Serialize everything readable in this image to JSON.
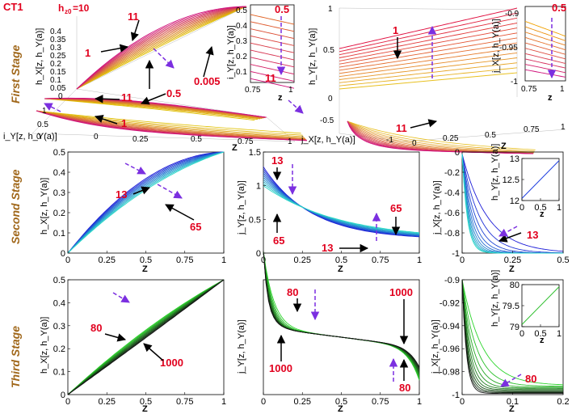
{
  "figure_label": "CT1",
  "hz0_label": "h",
  "hz0_sub": "z0",
  "hz0_value": "=10",
  "stages": [
    "First Stage",
    "Second Stage",
    "Third Stage"
  ],
  "colors": {
    "stage_label": "#a0671a",
    "red_label": "#e1001e",
    "arrow": "#7b2fe0"
  },
  "chart_data": [
    {
      "id": "first-left-3d",
      "type": "line",
      "title": "",
      "xlabel": "i_Y[z, h_Y(a)]",
      "ylabel": "h_X[z, h_Y(a)]",
      "zlabel": "z",
      "ztick_labels": [
        "0.4",
        "0.35",
        "0.3",
        "0.25",
        "0.2",
        "0.15",
        "0.1",
        "0.05",
        "0"
      ],
      "xtick_labels": [
        "0",
        "0.25",
        "0.5",
        "0.75",
        "1"
      ],
      "iy_tick_labels": [
        "1",
        "0.5",
        "0"
      ],
      "axis_letter": "Z",
      "labels": [
        "11",
        "1",
        "11",
        "0.5",
        "0.005",
        "1"
      ],
      "series_param_range": [
        0.005,
        11
      ],
      "inset": {
        "ylabel": "i_Y[z, h_Y(a)]",
        "ytick_labels": [
          "0.5",
          "0.4",
          "0.3",
          "0.2",
          "0.1"
        ],
        "xtick_labels": [
          "0.75",
          "1"
        ],
        "xlabel": "z",
        "labels": [
          "0.5",
          "11"
        ]
      }
    },
    {
      "id": "first-right-3d",
      "type": "line",
      "xlabel": "j_X[z, h_Y(a)]",
      "ylabel": "h_Y[z, h_Y(a)]",
      "zlabel": "z",
      "ztick_labels": [
        "1",
        "0.5",
        "0"
      ],
      "jx_tick_labels": [
        "-0.5",
        "-1"
      ],
      "xtick_labels": [
        "0",
        "0.25",
        "0.5",
        "0.75",
        "1"
      ],
      "axis_letter": "Z",
      "labels": [
        "1",
        "11"
      ],
      "inset": {
        "ylabel": "j_X[z, h_Y(a)]",
        "ytick_labels": [
          "-0.9",
          "-0.95",
          "-1"
        ],
        "xtick_labels": [
          "0.75",
          "1"
        ],
        "xlabel": "z",
        "labels": [
          "0.5"
        ]
      }
    },
    {
      "id": "second-hx",
      "type": "line",
      "xlabel": "Z",
      "ylabel": "h_X[z, h_Y(a)]",
      "xlim": [
        0,
        1
      ],
      "ylim": [
        0,
        0.5
      ],
      "xtick_labels": [
        "0",
        "0.25",
        "0.5",
        "0.75",
        "1"
      ],
      "ytick_labels": [
        "0",
        "0.1",
        "0.2",
        "0.3",
        "0.4",
        "0.5"
      ],
      "param_range": [
        13,
        65
      ],
      "labels": [
        "13",
        "65"
      ],
      "colormap": "blue-to-cyan",
      "model": "h_X(z)=0.5 z (1+a(1-z))",
      "a_range": [
        0.95,
        0.5
      ]
    },
    {
      "id": "second-jy",
      "type": "line",
      "xlabel": "Z",
      "ylabel": "j_Y[z, h_Y(a)]",
      "xlim": [
        0,
        1
      ],
      "ylim": [
        0,
        1.5
      ],
      "xtick_labels": [
        "0",
        "0.25",
        "0.5",
        "0.75",
        "1"
      ],
      "ytick_labels": [
        "0",
        "0.5",
        "1",
        "1.5"
      ],
      "param_range": [
        13,
        65
      ],
      "labels": [
        "13",
        "65",
        "65",
        "13"
      ],
      "colormap": "blue-to-cyan",
      "start_values": [
        1.28,
        1.0
      ],
      "end_value": 0.2
    },
    {
      "id": "second-jx",
      "type": "line",
      "xlabel": "Z",
      "ylabel": "j_X[z, h_Y(a)]",
      "xlim": [
        0,
        0.5
      ],
      "ylim": [
        -1,
        0
      ],
      "xtick_labels": [
        "0",
        "0.25",
        "0.5"
      ],
      "ytick_labels": [
        "-1",
        "-0.8",
        "-0.6",
        "-0.4",
        "-0.2",
        "0"
      ],
      "param_range": [
        13,
        65
      ],
      "labels": [
        "13"
      ],
      "colormap": "blue-to-cyan",
      "inset": {
        "ylabel": "h_Y[z, h_Y(a)]",
        "ylim": [
          12,
          13
        ],
        "xlim": [
          0,
          1
        ],
        "ytick_labels": [
          "12",
          "12.5",
          "13"
        ],
        "xtick_labels": [
          "0",
          "0.5",
          "1"
        ],
        "xlabel": "z",
        "line": [
          [
            0,
            12.05
          ],
          [
            1,
            12.95
          ]
        ]
      }
    },
    {
      "id": "third-hx",
      "type": "line",
      "xlabel": "Z",
      "ylabel": "h_X[z, h_Y(a)]",
      "xlim": [
        0,
        1
      ],
      "ylim": [
        0,
        0.5
      ],
      "xtick_labels": [
        "0",
        "0.25",
        "0.5",
        "0.75",
        "1"
      ],
      "ytick_labels": [
        "0",
        "0.1",
        "0.2",
        "0.3",
        "0.4",
        "0.5"
      ],
      "param_range": [
        80,
        1000
      ],
      "labels": [
        "80",
        "1000"
      ],
      "colormap": "green-to-black",
      "a_range": [
        0.25,
        -0.02
      ]
    },
    {
      "id": "third-jy",
      "type": "line",
      "xlabel": "Z",
      "ylabel": "j_Y[z, h_Y(a)]",
      "xlim": [
        0,
        1
      ],
      "ylim": [
        0.3,
        1.0
      ],
      "xtick_labels": [
        "0",
        "0.25",
        "0.5",
        "0.75",
        "1"
      ],
      "ytick_labels": [],
      "param_range": [
        80,
        1000
      ],
      "labels": [
        "80",
        "1000",
        "1000",
        "80"
      ],
      "colormap": "green-to-black"
    },
    {
      "id": "third-jx",
      "type": "line",
      "xlabel": "Z",
      "ylabel": "j_X[z, h_Y(a)]",
      "xlim": [
        0,
        0.2
      ],
      "ylim": [
        -1,
        -0.9
      ],
      "xtick_labels": [
        "0",
        "0.1",
        "0.2"
      ],
      "ytick_labels": [
        "-1",
        "-0.98",
        "-0.96",
        "-0.94",
        "-0.92",
        "-0.9"
      ],
      "param_range": [
        80,
        1000
      ],
      "labels": [
        "80"
      ],
      "colormap": "green-to-black",
      "inset": {
        "ylabel": "h_Y[z, h_Y(a)]",
        "ylim": [
          79,
          80
        ],
        "xlim": [
          0,
          1
        ],
        "ytick_labels": [
          "79",
          "79.5",
          "80"
        ],
        "xtick_labels": [
          "0",
          "0.5",
          "1"
        ],
        "xlabel": "z",
        "line": [
          [
            0,
            79.05
          ],
          [
            1,
            79.95
          ]
        ]
      }
    }
  ]
}
